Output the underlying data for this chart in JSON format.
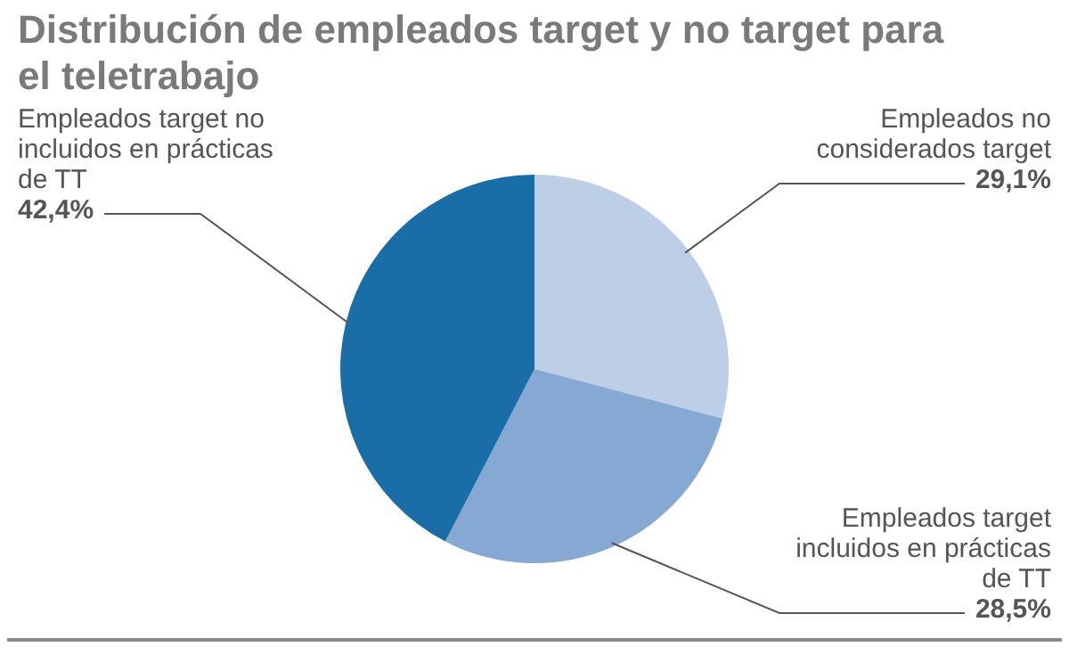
{
  "chart_data": {
    "type": "pie",
    "title": "Distribución de empleados target y no target para el teletrabajo",
    "categories": [
      "Empleados no considerados target",
      "Empleados target incluidos en prácticas de TT",
      "Empleados target no incluidos en prácticas de TT"
    ],
    "values": [
      29.1,
      28.5,
      42.4
    ],
    "colors": [
      "#bccfe6",
      "#86a9d4",
      "#1a6ea8"
    ],
    "value_labels": [
      "29,1%",
      "28,5%",
      "42,4%"
    ],
    "legend": false
  }
}
